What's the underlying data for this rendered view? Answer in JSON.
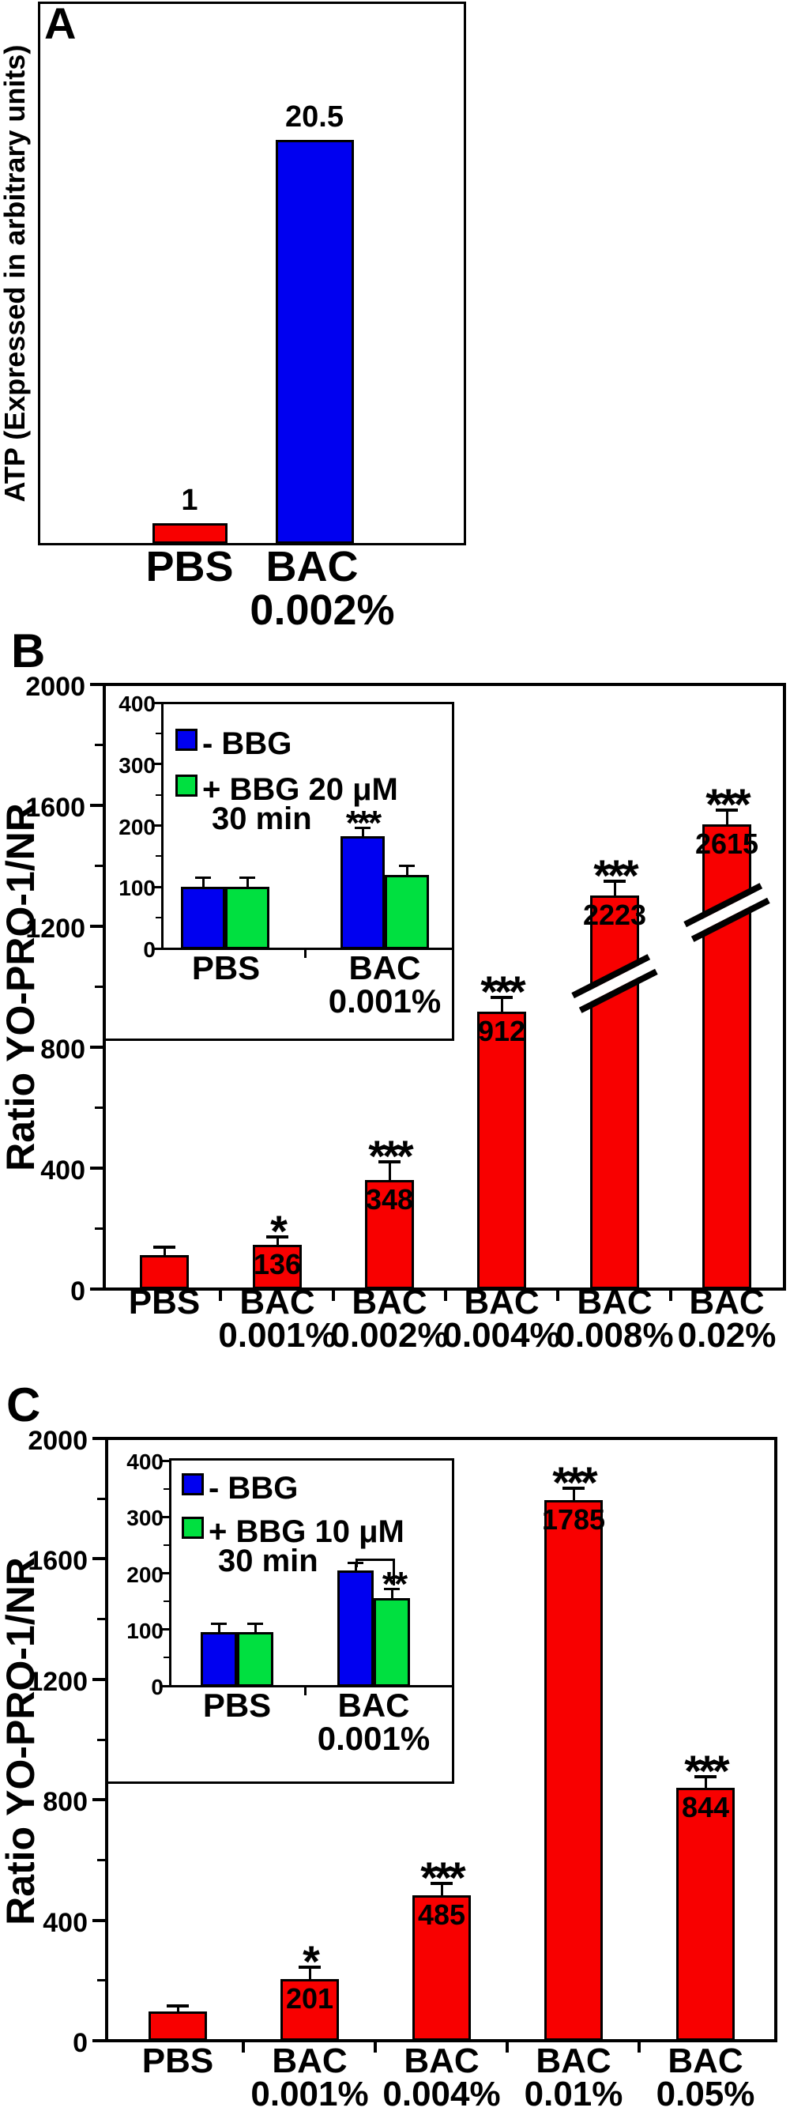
{
  "colors": {
    "bar_red": "#F80000",
    "bar_blue": "#0000F0",
    "bar_green": "#00E040",
    "axis_black": "#000000",
    "background": "#FFFFFF"
  },
  "chart_data": [
    {
      "panel_letter": "A",
      "type": "bar",
      "title": "",
      "ylabel": "ATP (Expressed in arbitrary units)",
      "xlabel": "",
      "ylim": [
        0,
        27.5
      ],
      "grid": false,
      "bars": [
        {
          "category_line1": "PBS",
          "category_line2": "",
          "value": 1,
          "data_label": "1",
          "color": "red"
        },
        {
          "category_line1": "BAC",
          "category_line2": "0.002%",
          "value": 20.5,
          "data_label": "20.5",
          "color": "blue"
        }
      ]
    },
    {
      "panel_letter": "B",
      "type": "bar",
      "title": "",
      "ylabel": "Ratio YO-PRO-1/NR",
      "xlabel": "",
      "ylim": [
        0,
        2000
      ],
      "yticks": [
        0,
        400,
        800,
        1200,
        1600,
        2000
      ],
      "yticks_minor": [
        200,
        600,
        1000,
        1400,
        1800
      ],
      "grid": false,
      "bars": [
        {
          "category_line1": "PBS",
          "category_line2": "",
          "value": 112,
          "displayed_value": 112,
          "error": 26,
          "sig": "",
          "data_label": "",
          "color": "red",
          "axis_break": false
        },
        {
          "category_line1": "BAC",
          "category_line2": "0.001%",
          "value": 136,
          "displayed_value": 146,
          "error": 26,
          "sig": "*",
          "data_label": "136",
          "color": "red",
          "axis_break": false
        },
        {
          "category_line1": "BAC",
          "category_line2": "0.002%",
          "value": 348,
          "displayed_value": 361,
          "error": 60,
          "sig": "***",
          "data_label": "348",
          "color": "red",
          "axis_break": false
        },
        {
          "category_line1": "BAC",
          "category_line2": "0.004%",
          "value": 912,
          "displayed_value": 918,
          "error": 47,
          "sig": "***",
          "data_label": "912",
          "color": "red",
          "axis_break": false
        },
        {
          "category_line1": "BAC",
          "category_line2": "0.008%",
          "value": 2223,
          "displayed_value": 1302,
          "error": 47,
          "sig": "***",
          "data_label": "2223",
          "color": "red",
          "axis_break": true
        },
        {
          "category_line1": "BAC",
          "category_line2": "0.02%",
          "value": 2615,
          "displayed_value": 1537,
          "error": 47,
          "sig": "***",
          "data_label": "2615",
          "color": "red",
          "axis_break": true
        }
      ],
      "inset": {
        "ylim": [
          0,
          400
        ],
        "yticks": [
          0,
          100,
          200,
          300,
          400
        ],
        "yticks_minor": [
          50,
          150,
          250,
          350
        ],
        "legend": [
          {
            "color": "blue",
            "line1": "- BBG",
            "line2": ""
          },
          {
            "color": "green",
            "line1": "+ BBG 20 μM",
            "line2": "30 min"
          }
        ],
        "groups": [
          {
            "category_line1": "PBS",
            "category_line2": "",
            "bars": [
              {
                "color": "blue",
                "value": 100,
                "error": 15,
                "sig": ""
              },
              {
                "color": "green",
                "value": 100,
                "error": 15,
                "sig": ""
              }
            ]
          },
          {
            "category_line1": "BAC",
            "category_line2": "0.001%",
            "bars": [
              {
                "color": "blue",
                "value": 183,
                "error": 13,
                "sig": "***"
              },
              {
                "color": "green",
                "value": 120,
                "error": 14,
                "sig": ""
              }
            ]
          }
        ],
        "bracket": null
      }
    },
    {
      "panel_letter": "C",
      "type": "bar",
      "title": "",
      "ylabel": "Ratio YO-PRO-1/NR",
      "xlabel": "",
      "ylim": [
        0,
        2000
      ],
      "yticks": [
        0,
        400,
        800,
        1200,
        1600,
        2000
      ],
      "yticks_minor": [
        200,
        600,
        1000,
        1400,
        1800
      ],
      "grid": false,
      "bars": [
        {
          "category_line1": "PBS",
          "category_line2": "",
          "value": 97,
          "displayed_value": 97,
          "error": 18,
          "sig": "",
          "data_label": "",
          "color": "red",
          "axis_break": false
        },
        {
          "category_line1": "BAC",
          "category_line2": "0.001%",
          "value": 201,
          "displayed_value": 206,
          "error": 39,
          "sig": "*",
          "data_label": "201",
          "color": "red",
          "axis_break": false
        },
        {
          "category_line1": "BAC",
          "category_line2": "0.004%",
          "value": 485,
          "displayed_value": 483,
          "error": 40,
          "sig": "***",
          "data_label": "485",
          "color": "red",
          "axis_break": false
        },
        {
          "category_line1": "BAC",
          "category_line2": "0.01%",
          "value": 1785,
          "displayed_value": 1795,
          "error": 40,
          "sig": "***",
          "data_label": "1785",
          "color": "red",
          "axis_break": false
        },
        {
          "category_line1": "BAC",
          "category_line2": "0.05%",
          "value": 844,
          "displayed_value": 840,
          "error": 37,
          "sig": "***",
          "data_label": "844",
          "color": "red",
          "axis_break": false
        }
      ],
      "inset": {
        "ylim": [
          0,
          400
        ],
        "yticks": [
          0,
          100,
          200,
          300,
          400
        ],
        "yticks_minor": [
          50,
          150,
          250,
          350
        ],
        "legend": [
          {
            "color": "blue",
            "line1": "- BBG",
            "line2": ""
          },
          {
            "color": "green",
            "line1": "+ BBG 10 μM",
            "line2": "30 min"
          }
        ],
        "groups": [
          {
            "category_line1": "PBS",
            "category_line2": "",
            "bars": [
              {
                "color": "blue",
                "value": 96,
                "error": 14,
                "sig": ""
              },
              {
                "color": "green",
                "value": 96,
                "error": 14,
                "sig": ""
              }
            ]
          },
          {
            "category_line1": "BAC",
            "category_line2": "0.001%",
            "bars": [
              {
                "color": "blue",
                "value": 205,
                "error": 13,
                "sig": ""
              },
              {
                "color": "green",
                "value": 156,
                "error": 15,
                "sig": ""
              }
            ]
          }
        ],
        "bracket": {
          "label": "**",
          "connects": [
            "BAC blue",
            "BAC green"
          ]
        }
      }
    }
  ]
}
